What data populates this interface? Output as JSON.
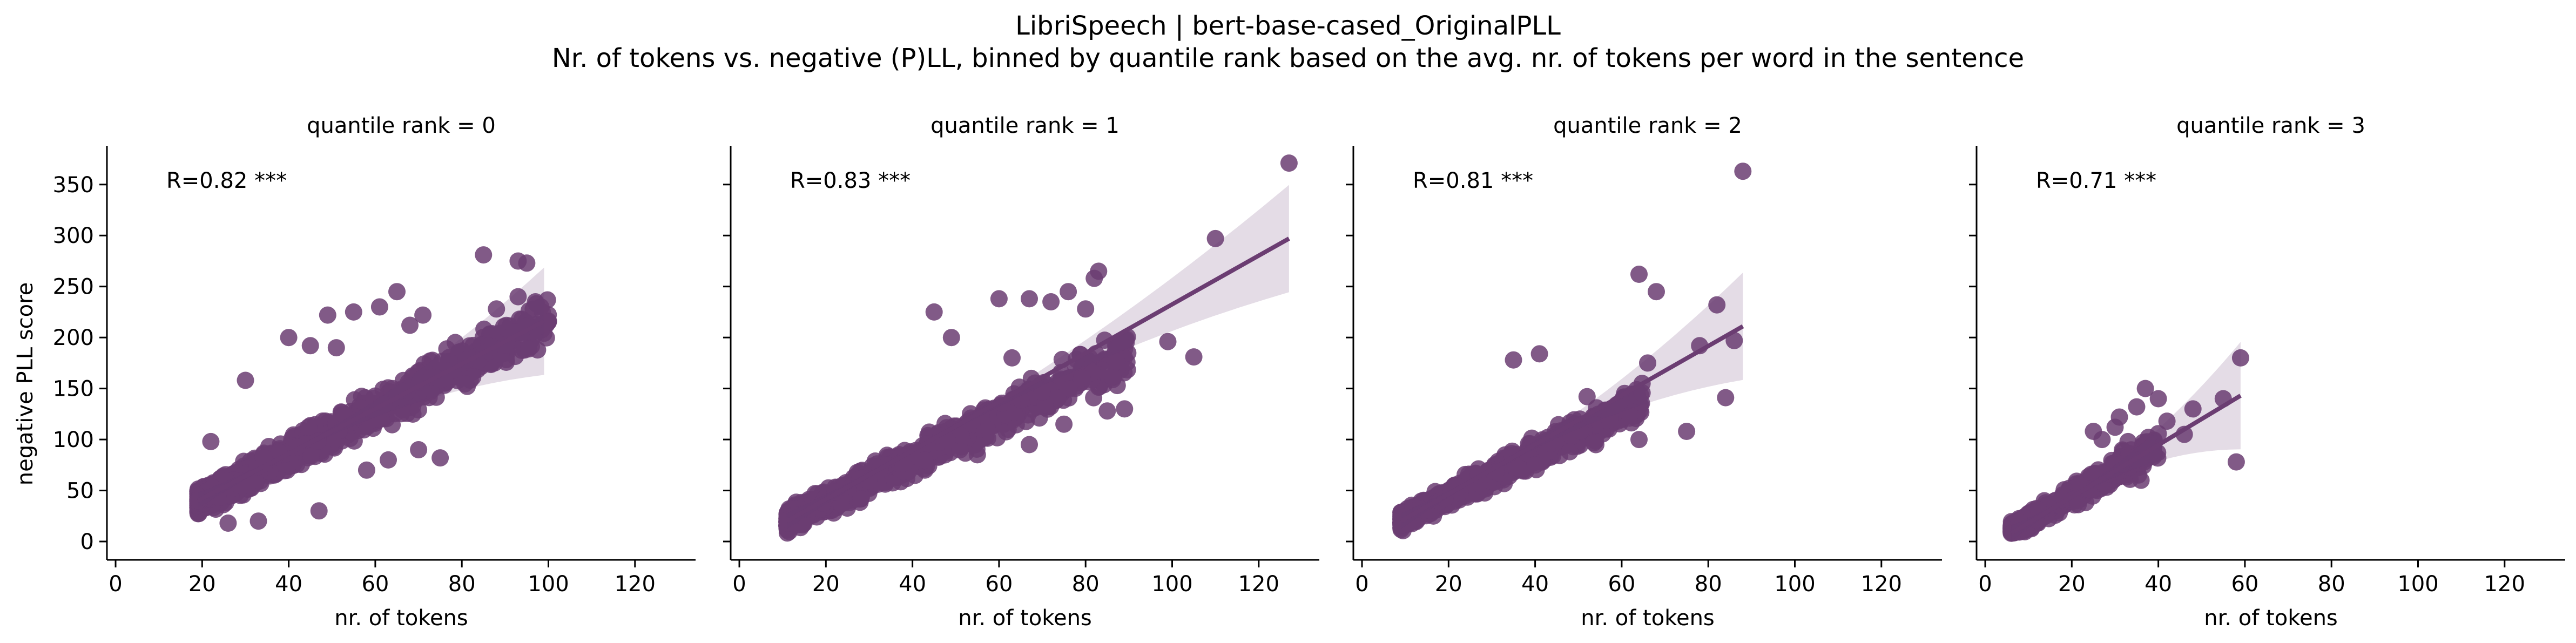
{
  "figure": {
    "title_line1": "LibriSpeech | bert-base-cased_OriginalPLL",
    "title_line2": "Nr. of tokens vs. negative (P)LL, binned by quantile rank based on the avg. nr. of tokens per word in the sentence",
    "xlabel": "nr. of tokens",
    "ylabel": "negative PLL score"
  },
  "chart_data": [
    {
      "type": "scatter",
      "title": "quantile rank = 0",
      "annotation": "R=0.82 ***",
      "xlabel": "nr. of tokens",
      "ylabel": "negative PLL score",
      "xlim": [
        -2,
        134
      ],
      "ylim": [
        -18,
        388
      ],
      "xticks": [
        "0",
        "20",
        "40",
        "60",
        "80",
        "100",
        "120"
      ],
      "yticks": [
        "0",
        "50",
        "100",
        "150",
        "200",
        "250",
        "300",
        "350"
      ],
      "color": "#6b3d72",
      "cloud": {
        "x_range": [
          19,
          100
        ],
        "slope": 2.2,
        "intercept": -3,
        "noise": 22
      },
      "points": [
        [
          85,
          281
        ],
        [
          93,
          275
        ],
        [
          95,
          273
        ],
        [
          65,
          245
        ],
        [
          97,
          235
        ],
        [
          93,
          240
        ],
        [
          88,
          228
        ],
        [
          92,
          205
        ],
        [
          61,
          230
        ],
        [
          71,
          222
        ],
        [
          55,
          225
        ],
        [
          49,
          222
        ],
        [
          68,
          212
        ],
        [
          40,
          200
        ],
        [
          45,
          192
        ],
        [
          51,
          190
        ],
        [
          81,
          178
        ],
        [
          78,
          168
        ],
        [
          30,
          158
        ],
        [
          22,
          98
        ],
        [
          47,
          30
        ],
        [
          26,
          18
        ],
        [
          33,
          20
        ],
        [
          70,
          90
        ],
        [
          75,
          82
        ],
        [
          63,
          80
        ],
        [
          58,
          70
        ]
      ],
      "regression": {
        "x": [
          19,
          99
        ],
        "y": [
          40,
          216
        ]
      },
      "ci_band": true
    },
    {
      "type": "scatter",
      "title": "quantile rank = 1",
      "annotation": "R=0.83 ***",
      "xlabel": "nr. of tokens",
      "ylabel": "",
      "xlim": [
        -2,
        134
      ],
      "ylim": [
        -18,
        388
      ],
      "xticks": [
        "0",
        "20",
        "40",
        "60",
        "80",
        "100",
        "120"
      ],
      "yticks": [
        "0",
        "50",
        "100",
        "150",
        "200",
        "250",
        "300",
        "350"
      ],
      "color": "#6b3d72",
      "cloud": {
        "x_range": [
          11,
          90
        ],
        "slope": 2.1,
        "intercept": -3,
        "noise": 20
      },
      "points": [
        [
          127,
          371
        ],
        [
          110,
          297
        ],
        [
          83,
          265
        ],
        [
          82,
          258
        ],
        [
          76,
          245
        ],
        [
          80,
          228
        ],
        [
          60,
          238
        ],
        [
          72,
          235
        ],
        [
          67,
          238
        ],
        [
          105,
          181
        ],
        [
          99,
          196
        ],
        [
          89,
          130
        ],
        [
          85,
          128
        ],
        [
          75,
          115
        ],
        [
          67,
          95
        ],
        [
          55,
          85
        ],
        [
          45,
          225
        ],
        [
          49,
          200
        ],
        [
          63,
          180
        ]
      ],
      "regression": {
        "x": [
          11,
          127
        ],
        "y": [
          20,
          297
        ]
      },
      "ci_band": true
    },
    {
      "type": "scatter",
      "title": "quantile rank = 2",
      "annotation": "R=0.81 ***",
      "xlabel": "nr. of tokens",
      "ylabel": "",
      "xlim": [
        -2,
        134
      ],
      "ylim": [
        -18,
        388
      ],
      "xticks": [
        "0",
        "20",
        "40",
        "60",
        "80",
        "100",
        "120"
      ],
      "yticks": [
        "0",
        "50",
        "100",
        "150",
        "200",
        "250",
        "300",
        "350"
      ],
      "color": "#6b3d72",
      "cloud": {
        "x_range": [
          9,
          65
        ],
        "slope": 2.1,
        "intercept": 2,
        "noise": 16
      },
      "points": [
        [
          88,
          363
        ],
        [
          64,
          262
        ],
        [
          68,
          245
        ],
        [
          82,
          232
        ],
        [
          86,
          197
        ],
        [
          78,
          192
        ],
        [
          66,
          175
        ],
        [
          84,
          141
        ],
        [
          52,
          142
        ],
        [
          64,
          100
        ],
        [
          48,
          88
        ],
        [
          40,
          75
        ],
        [
          75,
          108
        ],
        [
          41,
          184
        ],
        [
          35,
          178
        ]
      ],
      "regression": {
        "x": [
          9,
          88
        ],
        "y": [
          20,
          211
        ]
      },
      "ci_band": true
    },
    {
      "type": "scatter",
      "title": "quantile rank = 3",
      "annotation": "R=0.71 ***",
      "xlabel": "nr. of tokens",
      "ylabel": "",
      "xlim": [
        -2,
        134
      ],
      "ylim": [
        -18,
        388
      ],
      "xticks": [
        "0",
        "20",
        "40",
        "60",
        "80",
        "100",
        "120"
      ],
      "yticks": [
        "0",
        "50",
        "100",
        "150",
        "200",
        "250",
        "300",
        "350"
      ],
      "color": "#6b3d72",
      "cloud": {
        "x_range": [
          6,
          40
        ],
        "slope": 2.4,
        "intercept": -4,
        "noise": 14
      },
      "points": [
        [
          59,
          180
        ],
        [
          58,
          78
        ],
        [
          55,
          140
        ],
        [
          48,
          130
        ],
        [
          46,
          105
        ],
        [
          42,
          118
        ],
        [
          37,
          150
        ],
        [
          40,
          140
        ],
        [
          35,
          132
        ],
        [
          31,
          122
        ],
        [
          30,
          112
        ],
        [
          27,
          100
        ],
        [
          25,
          108
        ],
        [
          33,
          98
        ],
        [
          22,
          55
        ],
        [
          36,
          60
        ]
      ],
      "regression": {
        "x": [
          6,
          59
        ],
        "y": [
          8,
          143
        ]
      },
      "ci_band": true
    }
  ]
}
